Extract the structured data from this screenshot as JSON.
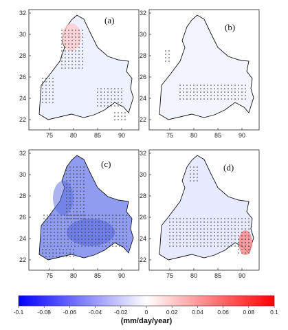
{
  "panels": [
    {
      "label": "(a)",
      "pattern": "north_positive"
    },
    {
      "label": "(b)",
      "pattern": "weak_negative"
    },
    {
      "label": "(c)",
      "pattern": "strong_negative"
    },
    {
      "label": "(d)",
      "pattern": "east_positive"
    }
  ],
  "axes": {
    "x_ticks": [
      "75",
      "80",
      "85",
      "90"
    ],
    "y_ticks": [
      "32",
      "30",
      "28",
      "26",
      "24",
      "22"
    ]
  },
  "colorbar": {
    "ticks": [
      "-0.1",
      "-0.08",
      "-0.06",
      "-0.04",
      "-0.02",
      "0",
      "0.02",
      "0.04",
      "0.06",
      "0.08",
      "0.1"
    ],
    "unit": "(mm/day/year)",
    "min_color": "#0000ff",
    "mid_color": "#ffffff",
    "max_color": "#ff0000"
  }
}
